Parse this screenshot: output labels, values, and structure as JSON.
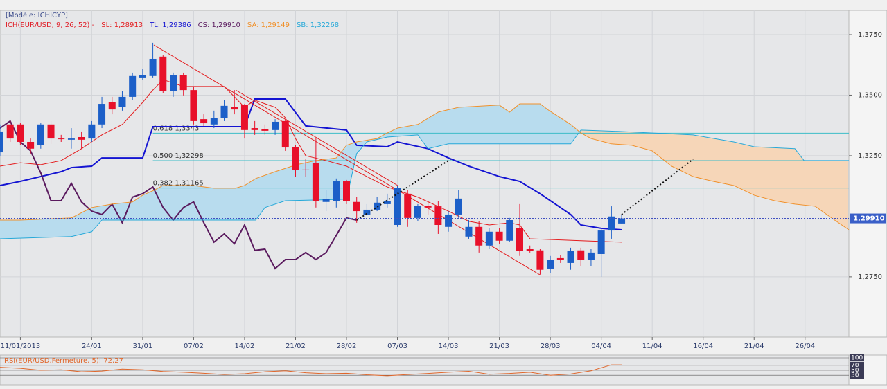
{
  "chart_data": {
    "type": "candlestick",
    "model_label": "[Modèle: ICHICYP]",
    "indicator_label": "ICH(EUR/USD, 9, 26, 52) -",
    "indicator_color": "#e0202a",
    "up_color": "#1c5fc8",
    "down_color": "#e8102a",
    "cloud_colors": {
      "up": "#b8dcee",
      "down": "#f6d6b8"
    },
    "grid": true,
    "xlim": [
      -2,
      81.3
    ],
    "ylim": [
      1.2501,
      1.385
    ],
    "yticks": [
      {
        "value": 1.375,
        "label": "1,3750"
      },
      {
        "value": 1.35,
        "label": "1,3500"
      },
      {
        "value": 1.325,
        "label": "1,3250"
      },
      {
        "value": 1.275,
        "label": "1,2750"
      }
    ],
    "xticks": [
      {
        "value": 0,
        "label": "11/01/2013"
      },
      {
        "value": 7,
        "label": "24/01"
      },
      {
        "value": 12,
        "label": "31/01"
      },
      {
        "value": 17,
        "label": "07/02"
      },
      {
        "value": 22,
        "label": "14/02"
      },
      {
        "value": 27,
        "label": "21/02"
      },
      {
        "value": 32,
        "label": "28/02"
      },
      {
        "value": 37,
        "label": "07/03"
      },
      {
        "value": 42,
        "label": "14/03"
      },
      {
        "value": 47,
        "label": "21/03"
      },
      {
        "value": 52,
        "label": "28/03"
      },
      {
        "value": 57,
        "label": "04/04"
      },
      {
        "value": 62,
        "label": "11/04"
      },
      {
        "value": 67,
        "label": "16/04"
      },
      {
        "value": 72,
        "label": "21/04"
      },
      {
        "value": 77,
        "label": "26/04"
      }
    ],
    "x": [
      -2,
      -1,
      0,
      1,
      2,
      3,
      4,
      5,
      6,
      7,
      8,
      9,
      10,
      11,
      12,
      13,
      14,
      15,
      16,
      17,
      18,
      19,
      20,
      21,
      22,
      23,
      24,
      25,
      26,
      27,
      28,
      29,
      30,
      31,
      32,
      33,
      34,
      35,
      36,
      37,
      38,
      39,
      40,
      41,
      42,
      43,
      44,
      45,
      46,
      47,
      48,
      49,
      50,
      51,
      52,
      53,
      54,
      55,
      56,
      57,
      58,
      59
    ],
    "open": [
      1.3264,
      1.3379,
      1.3379,
      1.3307,
      1.3293,
      1.3379,
      1.3321,
      1.3316,
      1.3327,
      1.3321,
      1.3379,
      1.347,
      1.345,
      1.3493,
      1.3573,
      1.3579,
      1.3659,
      1.3516,
      1.3584,
      1.3521,
      1.3401,
      1.3379,
      1.3407,
      1.345,
      1.3459,
      1.3364,
      1.3359,
      1.3356,
      1.3393,
      1.3287,
      1.3193,
      1.3219,
      1.3059,
      1.3064,
      1.3144,
      1.3059,
      1.3007,
      1.3027,
      1.305,
      1.2964,
      1.3093,
      1.2993,
      1.3044,
      1.3041,
      1.2956,
      1.3007,
      1.2916,
      1.2956,
      1.2879,
      1.2936,
      1.2899,
      1.295,
      1.2864,
      1.2859,
      1.2784,
      1.2827,
      1.2807,
      1.2859,
      1.2821,
      1.2844,
      1.2941,
      1.297
    ],
    "high": [
      1.3379,
      1.3393,
      1.3384,
      1.3321,
      1.3384,
      1.3393,
      1.3336,
      1.3364,
      1.335,
      1.3393,
      1.3493,
      1.3493,
      1.3516,
      1.3593,
      1.3607,
      1.3716,
      1.3664,
      1.3593,
      1.3593,
      1.3536,
      1.3421,
      1.3436,
      1.3479,
      1.3521,
      1.3464,
      1.3393,
      1.3379,
      1.3401,
      1.3401,
      1.3293,
      1.3236,
      1.3321,
      1.3107,
      1.3156,
      1.315,
      1.3079,
      1.305,
      1.3079,
      1.3093,
      1.3127,
      1.3107,
      1.305,
      1.3064,
      1.3064,
      1.3021,
      1.3107,
      1.2984,
      1.2979,
      1.295,
      1.295,
      1.2993,
      1.305,
      1.2879,
      1.2864,
      1.2836,
      1.2841,
      1.287,
      1.287,
      1.2864,
      1.295,
      1.3041,
      1.3007
    ],
    "low": [
      1.325,
      1.3307,
      1.3293,
      1.3259,
      1.3279,
      1.3299,
      1.3307,
      1.3279,
      1.3279,
      1.3307,
      1.3364,
      1.3421,
      1.3436,
      1.3479,
      1.3564,
      1.3573,
      1.3507,
      1.3493,
      1.3499,
      1.3379,
      1.3373,
      1.3364,
      1.3393,
      1.3421,
      1.3321,
      1.3336,
      1.3336,
      1.3336,
      1.327,
      1.3164,
      1.3164,
      1.3036,
      1.3021,
      1.3036,
      1.305,
      1.2973,
      1.3001,
      1.3021,
      1.3036,
      1.2956,
      1.2956,
      1.2979,
      1.3007,
      1.2927,
      1.2936,
      1.2993,
      1.2907,
      1.285,
      1.2864,
      1.2887,
      1.2893,
      1.2836,
      1.285,
      1.2759,
      1.2764,
      1.2807,
      1.2779,
      1.2793,
      1.2793,
      1.275,
      1.2907,
      1.297
    ],
    "close": [
      1.335,
      1.3321,
      1.3307,
      1.3279,
      1.3379,
      1.3321,
      1.3319,
      1.3321,
      1.3316,
      1.3379,
      1.3464,
      1.3441,
      1.3493,
      1.3579,
      1.3584,
      1.365,
      1.3516,
      1.3584,
      1.3521,
      1.3393,
      1.3384,
      1.3407,
      1.3456,
      1.3441,
      1.3356,
      1.3356,
      1.3353,
      1.339,
      1.3284,
      1.319,
      1.319,
      1.3064,
      1.307,
      1.3144,
      1.3064,
      1.3021,
      1.3027,
      1.3056,
      1.3064,
      1.3116,
      1.2993,
      1.3044,
      1.3036,
      1.2964,
      1.3007,
      1.3073,
      1.2956,
      1.2879,
      1.2936,
      1.2899,
      1.2984,
      1.2856,
      1.2856,
      1.2779,
      1.2821,
      1.2821,
      1.2856,
      1.2821,
      1.285,
      1.2941,
      1.2999,
      1.2991
    ],
    "series": [
      {
        "name": "SL: 1,28913",
        "color": "#e41a1c",
        "x": [
          -2,
          0,
          2,
          4,
          6,
          8,
          10,
          12,
          13,
          14,
          16,
          20,
          21,
          22,
          23,
          25,
          26,
          27,
          28,
          30,
          32,
          34,
          36,
          37,
          39,
          42,
          44,
          46,
          48,
          49,
          50,
          55,
          59
        ],
        "values": [
          1.3207,
          1.3221,
          1.3213,
          1.323,
          1.3279,
          1.3336,
          1.3379,
          1.347,
          1.3521,
          1.3564,
          1.3536,
          1.3536,
          1.3493,
          1.345,
          1.3479,
          1.345,
          1.3407,
          1.3321,
          1.325,
          1.323,
          1.3207,
          1.3164,
          1.3121,
          1.3107,
          1.3079,
          1.3021,
          1.2979,
          1.2964,
          1.2973,
          1.2964,
          1.2907,
          1.2899,
          1.2893
        ]
      },
      {
        "name": "TL: 1,29386",
        "color": "#1414d2",
        "x": [
          -2,
          0,
          2,
          4,
          5,
          7,
          8,
          12,
          13,
          22,
          23,
          26,
          28,
          32,
          33,
          36,
          37,
          40,
          42,
          44,
          47,
          49,
          51,
          54,
          55,
          57,
          59
        ],
        "values": [
          1.3127,
          1.3144,
          1.3164,
          1.3184,
          1.3201,
          1.3207,
          1.3241,
          1.3241,
          1.337,
          1.337,
          1.3484,
          1.3484,
          1.3373,
          1.3356,
          1.3293,
          1.3287,
          1.3307,
          1.3279,
          1.3241,
          1.3207,
          1.3164,
          1.3144,
          1.3093,
          1.3007,
          1.2964,
          1.295,
          1.2944
        ]
      },
      {
        "name": "CS: 1,29910",
        "color": "#5a1a5e",
        "x": [
          -2,
          -1,
          0,
          1,
          2,
          3,
          4,
          5,
          6,
          7,
          8,
          9,
          10,
          11,
          12,
          13,
          14,
          15,
          16,
          17,
          18,
          19,
          20,
          21,
          22,
          23,
          24,
          25,
          26,
          27,
          28,
          29,
          30,
          31,
          32,
          33
        ],
        "values": [
          1.3364,
          1.3393,
          1.3307,
          1.327,
          1.3179,
          1.3064,
          1.3064,
          1.3136,
          1.3059,
          1.3021,
          1.3007,
          1.305,
          1.2973,
          1.3079,
          1.3093,
          1.3121,
          1.3036,
          1.2984,
          1.3036,
          1.3059,
          1.2973,
          1.2893,
          1.2927,
          1.2887,
          1.2964,
          1.2859,
          1.2864,
          1.2784,
          1.2821,
          1.2821,
          1.285,
          1.2821,
          1.285,
          1.2921,
          1.2993,
          1.2984
        ]
      },
      {
        "name": "SA: 1,29149",
        "color": "#f0902a",
        "x": [
          -2,
          0,
          5,
          7,
          9,
          11,
          12,
          13.1,
          14,
          17,
          19,
          21.1,
          22,
          23.1,
          25,
          27.1,
          29,
          31,
          32,
          33,
          35,
          36,
          37,
          39,
          41,
          43,
          47,
          48,
          49,
          51,
          51.9,
          54,
          55,
          56,
          58,
          60,
          62,
          63.9,
          66,
          68,
          70,
          72,
          74,
          76,
          78,
          79.9,
          81.3
        ],
        "values": [
          1.2984,
          1.2984,
          1.2993,
          1.3036,
          1.305,
          1.3059,
          1.3087,
          1.3107,
          1.3127,
          1.3127,
          1.3116,
          1.3116,
          1.3127,
          1.3156,
          1.3184,
          1.3213,
          1.323,
          1.3241,
          1.3293,
          1.3307,
          1.3321,
          1.3344,
          1.3364,
          1.3379,
          1.343,
          1.345,
          1.3459,
          1.343,
          1.3464,
          1.3464,
          1.3436,
          1.3379,
          1.3344,
          1.3321,
          1.3299,
          1.3293,
          1.327,
          1.3207,
          1.3164,
          1.3144,
          1.3127,
          1.3087,
          1.3064,
          1.305,
          1.3041,
          1.2984,
          1.2944
        ]
      },
      {
        "name": "SB: 1,32268",
        "color": "#25a8d8",
        "x": [
          -2,
          5,
          7,
          8,
          17,
          23.1,
          24,
          26,
          32,
          33,
          34,
          36,
          39,
          40,
          42,
          54,
          55,
          59,
          66,
          70,
          72,
          76,
          76.9,
          81.3
        ],
        "values": [
          1.2907,
          1.2916,
          1.2936,
          1.2984,
          1.2984,
          1.2984,
          1.3036,
          1.3064,
          1.307,
          1.3259,
          1.3307,
          1.3327,
          1.3336,
          1.3279,
          1.3299,
          1.3299,
          1.3356,
          1.335,
          1.3336,
          1.3307,
          1.3287,
          1.3279,
          1.323,
          1.323
        ]
      }
    ],
    "fib_levels": [
      {
        "value": 1.3343,
        "label": "0.618 1,3343"
      },
      {
        "value": 1.32298,
        "label": "0.500 1,32298"
      },
      {
        "value": 1.31165,
        "label": "0.382 1,31165"
      }
    ],
    "fib_color": "#3cbcc8",
    "last_price": {
      "value": 1.2991,
      "label": "1,29910"
    },
    "rsi": {
      "title": "RSI(EUR/USD.Fermeture, 5): 72,27",
      "color": "#e0662a",
      "ylim": [
        0,
        100
      ],
      "yticks": [
        100,
        70,
        50,
        30
      ],
      "x": [
        -2,
        0,
        2,
        4,
        6,
        8,
        10,
        12,
        14,
        16,
        18,
        20,
        22,
        24,
        26,
        28,
        30,
        32,
        34,
        36,
        38,
        40,
        42,
        44,
        46,
        48,
        50,
        52,
        54,
        56,
        58,
        59
      ],
      "values": [
        62,
        58,
        50,
        52,
        44,
        47,
        55,
        52,
        45,
        42,
        38,
        33,
        36,
        44,
        48,
        40,
        36,
        38,
        32,
        28,
        33,
        37,
        42,
        46,
        34,
        37,
        42,
        30,
        35,
        48,
        72,
        72
      ]
    }
  }
}
